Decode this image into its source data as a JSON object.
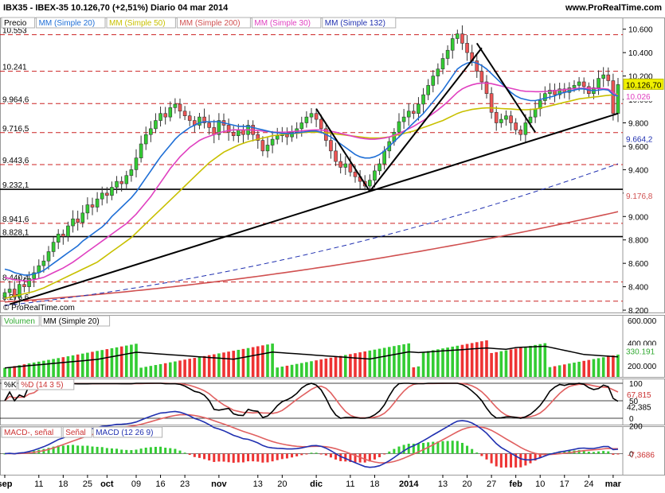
{
  "header": {
    "title_line": "IBX35 - IBEX-35    10.126,70 (+2,51%)    Diario  04 mar 2014",
    "site": "www.ProRealTime.com"
  },
  "legend_price": [
    {
      "label": "Precio",
      "color": "#000000"
    },
    {
      "label": "MM (Simple 20)",
      "color": "#1f6fd6"
    },
    {
      "label": "MM (Simple 50)",
      "color": "#c8c000"
    },
    {
      "label": "MM (Simple 200)",
      "color": "#d05050"
    },
    {
      "label": "MM (Simple 30)",
      "color": "#e040c0"
    },
    {
      "label": "MM (Simple 132)",
      "color": "#2030b0"
    }
  ],
  "copyright": "© ProRealTime.com",
  "legend_volume": [
    "Volumen",
    "MM (Simple 20)"
  ],
  "legend_stoch": [
    "%K",
    "%D (14 3 5)"
  ],
  "legend_macd": [
    "MACD-, señal",
    "Señal",
    "MACD (12 26 9)"
  ],
  "chart_data": {
    "type": "candlestick",
    "price_axis": {
      "ticks": [
        "10.600",
        "10.400",
        "10.200",
        "10.000",
        "9.800",
        "9.600",
        "9.400",
        "9.200",
        "9.000",
        "8.800",
        "8.600",
        "8.400",
        "8.200"
      ],
      "tick_values": [
        10600,
        10400,
        10200,
        10000,
        9800,
        9600,
        9400,
        9200,
        9000,
        8800,
        8600,
        8400,
        8200
      ],
      "range": [
        8180,
        10700
      ]
    },
    "left_levels": [
      {
        "label": "10.553",
        "value": 10553
      },
      {
        "label": "10.241",
        "value": 10241
      },
      {
        "label": "9.964,6",
        "value": 9964.6
      },
      {
        "label": "9.716,5",
        "value": 9716.5
      },
      {
        "label": "9.443,6",
        "value": 9443.6
      },
      {
        "label": "9.232,1",
        "value": 9232.1
      },
      {
        "label": "8.941,6",
        "value": 8941.6
      },
      {
        "label": "8.828,1",
        "value": 8828.1
      },
      {
        "label": "8.440,4",
        "value": 8440.4
      },
      {
        "label": "8.276,6",
        "value": 8276.6
      }
    ],
    "right_labels": [
      {
        "label": "10.126,70",
        "value": 10126.7,
        "color": "#f0f000"
      },
      {
        "label": "10.026",
        "value": 10026,
        "color": "#e040c0"
      },
      {
        "label": "9.664,2",
        "value": 9664.2,
        "color": "#2030b0"
      },
      {
        "label": "9.176,8",
        "value": 9176.8,
        "color": "#d05050"
      }
    ],
    "x_labels": [
      "sep",
      "11",
      "18",
      "25",
      "oct",
      "09",
      "16",
      "23",
      "nov",
      "13",
      "20",
      "dic",
      "11",
      "18",
      "2014",
      "13",
      "20",
      "27",
      "feb",
      "10",
      "17",
      "24",
      "mar"
    ],
    "x_label_index": [
      0,
      7,
      12,
      17,
      21,
      27,
      32,
      37,
      44,
      52,
      57,
      64,
      71,
      76,
      83,
      90,
      95,
      100,
      105,
      110,
      115,
      120,
      125
    ],
    "closes": [
      8350,
      8380,
      8310,
      8420,
      8400,
      8470,
      8520,
      8580,
      8620,
      8700,
      8780,
      8850,
      8830,
      8920,
      8980,
      8950,
      9030,
      9100,
      9080,
      9150,
      9200,
      9180,
      9250,
      9300,
      9280,
      9350,
      9400,
      9500,
      9620,
      9700,
      9750,
      9820,
      9880,
      9850,
      9930,
      9960,
      9900,
      9860,
      9820,
      9780,
      9850,
      9800,
      9760,
      9700,
      9820,
      9780,
      9720,
      9690,
      9740,
      9700,
      9780,
      9700,
      9650,
      9560,
      9610,
      9660,
      9690,
      9700,
      9680,
      9720,
      9750,
      9800,
      9850,
      9880,
      9830,
      9750,
      9650,
      9560,
      9470,
      9420,
      9450,
      9380,
      9340,
      9300,
      9260,
      9310,
      9390,
      9450,
      9560,
      9640,
      9720,
      9810,
      9850,
      9900,
      9880,
      9960,
      10040,
      10120,
      10200,
      10260,
      10350,
      10420,
      10520,
      10560,
      10480,
      10400,
      10330,
      10240,
      10150,
      10050,
      9890,
      9800,
      9830,
      9860,
      9800,
      9740,
      9700,
      9800,
      9850,
      9920,
      9990,
      10050,
      10080,
      10040,
      10090,
      10060,
      10100,
      10120,
      10150,
      10110,
      10050,
      10100,
      10180,
      10210,
      10160,
      9880,
      10127
    ],
    "sma20": [
      8550,
      8540,
      8520,
      8510,
      8500,
      8500,
      8510,
      8520,
      8540,
      8570,
      8600,
      8630,
      8660,
      8690,
      8720,
      8750,
      8790,
      8820,
      8850,
      8880,
      8910,
      8950,
      9000,
      9040,
      9080,
      9120,
      9160,
      9210,
      9270,
      9330,
      9390,
      9450,
      9510,
      9560,
      9610,
      9660,
      9700,
      9730,
      9760,
      9780,
      9800,
      9810,
      9810,
      9810,
      9810,
      9800,
      9790,
      9780,
      9770,
      9770,
      9770,
      9760,
      9750,
      9740,
      9730,
      9720,
      9715,
      9710,
      9710,
      9710,
      9715,
      9720,
      9725,
      9730,
      9730,
      9720,
      9700,
      9680,
      9650,
      9620,
      9590,
      9560,
      9530,
      9510,
      9500,
      9500,
      9510,
      9530,
      9560,
      9600,
      9640,
      9680,
      9720,
      9760,
      9800,
      9840,
      9880,
      9930,
      9980,
      10030,
      10080,
      10140,
      10200,
      10260,
      10290,
      10310,
      10320,
      10310,
      10290,
      10260,
      10220,
      10180,
      10140,
      10100,
      10060,
      10030,
      10010,
      10000,
      9990,
      9990,
      10000,
      10010,
      10020,
      10030,
      10050,
      10060,
      10070,
      10080,
      10090,
      10090,
      10080,
      10075,
      10080,
      10085,
      10080,
      10040,
      10030
    ],
    "sma50": [
      8300,
      8310,
      8320,
      8330,
      8340,
      8350,
      8360,
      8375,
      8390,
      8410,
      8430,
      8450,
      8470,
      8490,
      8510,
      8530,
      8550,
      8570,
      8590,
      8610,
      8640,
      8670,
      8700,
      8730,
      8760,
      8790,
      8820,
      8860,
      8900,
      8940,
      8980,
      9020,
      9060,
      9100,
      9140,
      9180,
      9220,
      9260,
      9300,
      9340,
      9380,
      9420,
      9460,
      9490,
      9520,
      9550,
      9570,
      9590,
      9610,
      9625,
      9640,
      9650,
      9660,
      9670,
      9680,
      9690,
      9695,
      9700,
      9705,
      9710,
      9710,
      9715,
      9720,
      9720,
      9720,
      9720,
      9715,
      9710,
      9705,
      9700,
      9695,
      9690,
      9685,
      9680,
      9675,
      9670,
      9670,
      9670,
      9675,
      9680,
      9690,
      9700,
      9710,
      9720,
      9730,
      9745,
      9760,
      9775,
      9790,
      9805,
      9820,
      9840,
      9860,
      9880,
      9895,
      9905,
      9915,
      9920,
      9925,
      9928,
      9928,
      9925,
      9922,
      9920,
      9918,
      9915,
      9912,
      9912,
      9914,
      9918,
      9925,
      9935,
      9945,
      9955,
      9965,
      9975,
      9985,
      9995,
      10005,
      10010,
      10015,
      10020,
      10025,
      10030,
      10035,
      10040,
      10045
    ],
    "sma30": [
      8480,
      8470,
      8460,
      8455,
      8450,
      8455,
      8460,
      8470,
      8480,
      8500,
      8520,
      8540,
      8560,
      8585,
      8610,
      8640,
      8670,
      8700,
      8730,
      8760,
      8790,
      8820,
      8850,
      8880,
      8910,
      8940,
      8980,
      9020,
      9070,
      9120,
      9170,
      9230,
      9290,
      9350,
      9410,
      9460,
      9510,
      9550,
      9590,
      9620,
      9650,
      9670,
      9685,
      9700,
      9715,
      9725,
      9735,
      9740,
      9740,
      9740,
      9740,
      9738,
      9735,
      9730,
      9726,
      9722,
      9720,
      9720,
      9722,
      9725,
      9728,
      9732,
      9735,
      9738,
      9740,
      9738,
      9734,
      9728,
      9720,
      9710,
      9700,
      9690,
      9680,
      9670,
      9665,
      9660,
      9660,
      9665,
      9670,
      9680,
      9695,
      9710,
      9730,
      9750,
      9770,
      9795,
      9820,
      9850,
      9880,
      9910,
      9945,
      9980,
      10020,
      10060,
      10090,
      10110,
      10125,
      10135,
      10140,
      10140,
      10135,
      10125,
      10115,
      10105,
      10095,
      10085,
      10075,
      10070,
      10068,
      10066,
      10066,
      10068,
      10072,
      10076,
      10080,
      10084,
      10088,
      10092,
      10095,
      10096,
      10095,
      10094,
      10094,
      10092,
      10088,
      10060,
      10026
    ],
    "sma132_range": [
      8240,
      9664
    ],
    "sma200_range": [
      8270,
      9177
    ],
    "trendlines": [
      {
        "from": [
          1,
          8250
        ],
        "to": [
          126,
          9880
        ]
      },
      {
        "from": [
          64,
          9920
        ],
        "to": [
          75,
          9215
        ]
      },
      {
        "from": [
          75,
          9215
        ],
        "to": [
          98,
          10440
        ]
      },
      {
        "from": [
          97,
          10480
        ],
        "to": [
          109,
          9720
        ]
      }
    ],
    "volume_axis": {
      "ticks": [
        "600.000",
        "400.000",
        "200.000"
      ],
      "tick_values": [
        600000,
        400000,
        200000
      ],
      "range": [
        100000,
        650000
      ]
    },
    "volume_label": "330.191",
    "stoch_axis": {
      "ticks": [
        "100",
        "50",
        "0"
      ],
      "tick_values": [
        100,
        50,
        0
      ]
    },
    "stoch_labels": [
      "67,815",
      "42,385"
    ],
    "macd_axis": {
      "ticks": [
        "200",
        "0"
      ],
      "tick_values": [
        200,
        0
      ]
    },
    "macd_label": "-7,3686"
  }
}
